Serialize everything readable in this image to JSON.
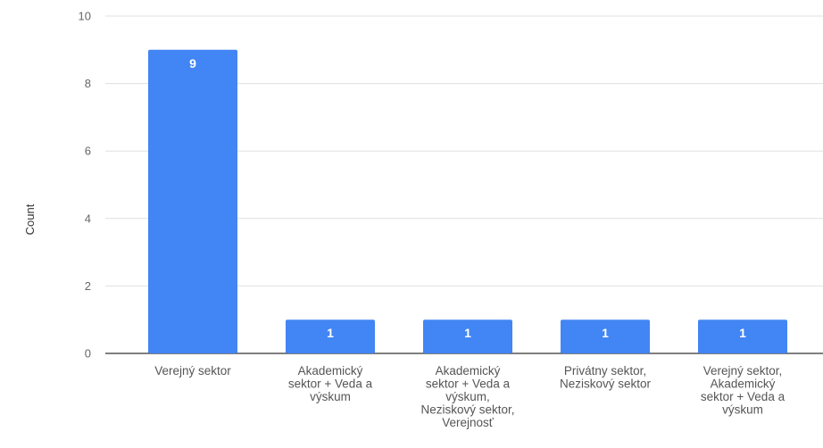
{
  "chart_data": {
    "type": "bar",
    "categories": [
      [
        "Verejný sektor"
      ],
      [
        "Akademický",
        "sektor + Veda a",
        "výskum"
      ],
      [
        "Akademický",
        "sektor + Veda a",
        "výskum,",
        "Neziskový sektor,",
        "Verejnosť"
      ],
      [
        "Privátny sektor,",
        "Neziskový sektor"
      ],
      [
        "Verejný sektor,",
        "Akademický",
        "sektor + Veda a",
        "výskum"
      ]
    ],
    "values": [
      9,
      1,
      1,
      1,
      1
    ],
    "data_labels": [
      "9",
      "1",
      "1",
      "1",
      "1"
    ],
    "ylabel": "Count",
    "xlabel": "",
    "ylim": [
      0,
      10
    ],
    "yticks": [
      0,
      2,
      4,
      6,
      8,
      10
    ],
    "grid": true,
    "colors": {
      "bar": "#4285f4",
      "grid": "#e0e0e0",
      "axis": "#333333"
    }
  }
}
